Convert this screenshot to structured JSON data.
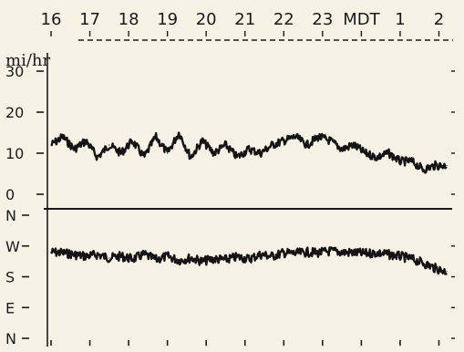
{
  "chart_data": [
    {
      "type": "line",
      "top_axis": {
        "tick_labels": [
          "16",
          "17",
          "18",
          "19",
          "20",
          "21",
          "22",
          "23",
          "MDT",
          "1",
          "2"
        ]
      },
      "ylabel": "mi/hr",
      "y_tick_labels": [
        "30",
        "20",
        "10",
        "0"
      ],
      "y_ticks": [
        30,
        20,
        10,
        0
      ],
      "ylim": [
        0,
        32
      ],
      "series": [
        {
          "x": [
            16.0,
            16.3,
            16.6,
            16.9,
            17.2,
            17.5,
            17.8,
            18.1,
            18.4,
            18.7,
            19.0,
            19.3,
            19.6,
            19.9,
            20.2,
            20.5,
            20.8,
            21.1,
            21.4,
            21.7,
            22.0,
            22.3,
            22.6,
            22.9,
            23.2,
            23.5,
            23.8,
            24.1,
            24.4,
            24.7,
            25.0,
            25.3,
            25.6,
            25.9,
            26.2
          ],
          "values": [
            12,
            14,
            11,
            13,
            9,
            12,
            10,
            13,
            9,
            14,
            10,
            15,
            9,
            13,
            10,
            12,
            9,
            11,
            10,
            12,
            13,
            14,
            12,
            14,
            13,
            11,
            12,
            10,
            9,
            10,
            8,
            8,
            6,
            7,
            7
          ]
        }
      ]
    },
    {
      "type": "line",
      "ylabel": "",
      "y_tick_labels": [
        "N",
        "W",
        "S",
        "E",
        "N"
      ],
      "y_ticks": [
        360,
        270,
        180,
        90,
        0
      ],
      "ylim": [
        0,
        360
      ],
      "x_ticks": [
        16,
        17,
        18,
        19,
        20,
        21,
        22,
        23,
        24,
        25,
        26
      ],
      "series": [
        {
          "x": [
            16.0,
            16.3,
            16.6,
            16.9,
            17.2,
            17.5,
            17.8,
            18.1,
            18.4,
            18.7,
            19.0,
            19.3,
            19.6,
            19.9,
            20.2,
            20.5,
            20.8,
            21.1,
            21.4,
            21.7,
            22.0,
            22.3,
            22.6,
            22.9,
            23.2,
            23.5,
            23.8,
            24.1,
            24.4,
            24.7,
            25.0,
            25.3,
            25.6,
            25.9,
            26.2
          ],
          "values": [
            252,
            250,
            245,
            240,
            245,
            235,
            240,
            232,
            245,
            230,
            240,
            228,
            235,
            225,
            232,
            230,
            238,
            232,
            245,
            240,
            250,
            248,
            252,
            250,
            255,
            252,
            250,
            248,
            250,
            245,
            240,
            232,
            220,
            205,
            195
          ]
        }
      ]
    }
  ]
}
